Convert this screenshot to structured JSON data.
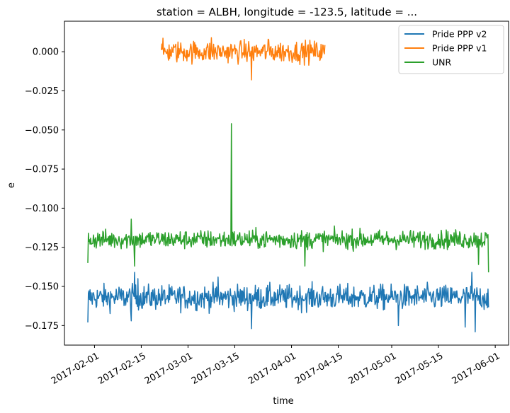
{
  "chart_data": {
    "type": "line",
    "title": "station = ALBH, longitude = -123.5, latitude = ...",
    "xlabel": "time",
    "ylabel": "e",
    "x_range": [
      "2017-01-23",
      "2017-06-05"
    ],
    "ylim": [
      -0.1875,
      0.0195
    ],
    "yticks": [
      0.0,
      -0.025,
      -0.05,
      -0.075,
      -0.1,
      -0.125,
      -0.15,
      -0.175
    ],
    "ytick_labels": [
      "0.000",
      "−0.025",
      "−0.050",
      "−0.075",
      "−0.100",
      "−0.125",
      "−0.150",
      "−0.175"
    ],
    "xticks": [
      "2017-02-01",
      "2017-02-15",
      "2017-03-01",
      "2017-03-15",
      "2017-04-01",
      "2017-04-15",
      "2017-05-01",
      "2017-05-15",
      "2017-06-01"
    ],
    "grid": false,
    "legend_position": "top-right",
    "series": [
      {
        "name": "Pride PPP v2",
        "color": "#1f77b4",
        "start": "2017-01-30",
        "end": "2017-05-30",
        "mean": -0.157,
        "noise": 0.004,
        "dips": [
          {
            "t": "2017-01-30",
            "v": -0.173
          },
          {
            "t": "2017-02-12",
            "v": -0.172
          },
          {
            "t": "2017-02-13",
            "v": -0.141
          },
          {
            "t": "2017-02-14",
            "v": -0.145
          },
          {
            "t": "2017-03-10",
            "v": -0.144
          },
          {
            "t": "2017-03-20",
            "v": -0.177
          },
          {
            "t": "2017-05-03",
            "v": -0.175
          },
          {
            "t": "2017-05-23",
            "v": -0.176
          },
          {
            "t": "2017-05-25",
            "v": -0.141
          },
          {
            "t": "2017-05-26",
            "v": -0.179
          }
        ]
      },
      {
        "name": "Pride PPP v1",
        "color": "#ff7f0e",
        "start": "2017-02-21",
        "end": "2017-04-11",
        "mean": 0.0,
        "noise": 0.0035,
        "dips": [
          {
            "t": "2017-03-20",
            "v": -0.018
          },
          {
            "t": "2017-03-08",
            "v": 0.009
          },
          {
            "t": "2017-03-25",
            "v": 0.008
          }
        ]
      },
      {
        "name": "UNR",
        "color": "#2ca02c",
        "start": "2017-01-30",
        "end": "2017-05-30",
        "mean": -0.12,
        "noise": 0.003,
        "dips": [
          {
            "t": "2017-01-30",
            "v": -0.135
          },
          {
            "t": "2017-02-12",
            "v": -0.107
          },
          {
            "t": "2017-02-13",
            "v": -0.137
          },
          {
            "t": "2017-03-14",
            "v": -0.046
          },
          {
            "t": "2017-04-05",
            "v": -0.137
          },
          {
            "t": "2017-05-27",
            "v": -0.136
          },
          {
            "t": "2017-05-30",
            "v": -0.141
          }
        ]
      }
    ]
  }
}
